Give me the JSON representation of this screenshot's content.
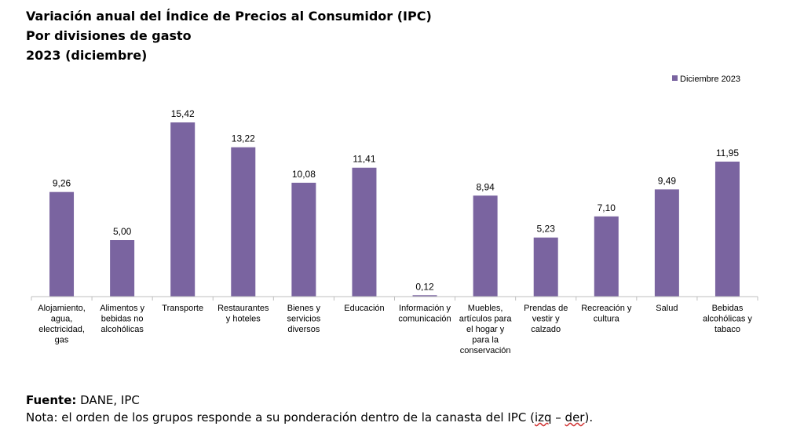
{
  "title_lines": [
    "Variación anual del Índice de Precios al Consumidor (IPC)",
    "Por divisiones de gasto",
    "2023 (diciembre)"
  ],
  "colors": {
    "bar": "#7a64a0",
    "axis": "#bfbfbf",
    "spellcheck": "#d03030"
  },
  "chart_data": {
    "type": "bar",
    "categories": [
      "Alojamiento, agua, electricidad, gas",
      "Alimentos y bebidas no alcohólicas",
      "Transporte",
      "Restaurantes y hoteles",
      "Bienes y servicios diversos",
      "Educación",
      "Información y comunicación",
      "Muebles, artículos para el hogar y para la conservación",
      "Prendas de vestir y calzado",
      "Recreación y cultura",
      "Salud",
      "Bebidas alcohólicas y tabaco"
    ],
    "category_lines": [
      [
        "Alojamiento,",
        "agua,",
        "electricidad,",
        "gas"
      ],
      [
        "Alimentos y",
        "bebidas no",
        "alcohólicas"
      ],
      [
        "Transporte"
      ],
      [
        "Restaurantes",
        "y hoteles"
      ],
      [
        "Bienes y",
        "servicios",
        "diversos"
      ],
      [
        "Educación"
      ],
      [
        "Información y",
        "comunicación"
      ],
      [
        "Muebles,",
        "artículos para",
        "el hogar y",
        "para la",
        "conservación"
      ],
      [
        "Prendas de",
        "vestir y",
        "calzado"
      ],
      [
        "Recreación y",
        "cultura"
      ],
      [
        "Salud"
      ],
      [
        "Bebidas",
        "alcohólicas y",
        "tabaco"
      ]
    ],
    "series": [
      {
        "name": "Diciembre 2023",
        "values": [
          9.26,
          5.0,
          15.42,
          13.22,
          10.08,
          11.41,
          0.12,
          8.94,
          5.23,
          7.1,
          9.49,
          11.95
        ]
      }
    ],
    "data_labels": [
      "9,26",
      "5,00",
      "15,42",
      "13,22",
      "10,08",
      "11,41",
      "0,12",
      "8,94",
      "5,23",
      "7,10",
      "9,49",
      "11,95"
    ],
    "ylim": [
      0,
      15.42
    ],
    "grid": false,
    "legend_position": "top-right"
  },
  "footer": {
    "source_label": "Fuente:",
    "source_value": " DANE, IPC",
    "note_prefix": "Nota: el orden de los grupos responde a su ponderación dentro de la canasta del IPC (",
    "note_word1": "izq",
    "note_dash": " – ",
    "note_word2": "der",
    "note_suffix": ")."
  }
}
